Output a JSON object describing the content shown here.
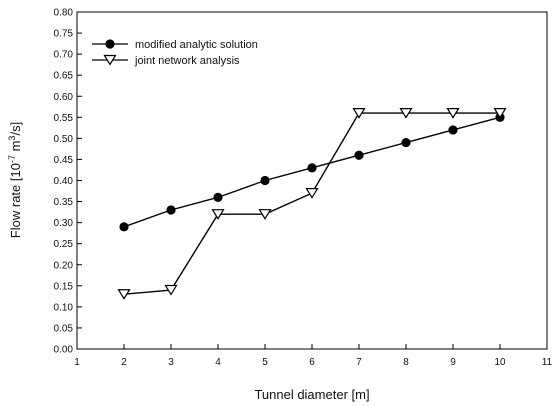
{
  "chart_data": {
    "type": "line",
    "xlabel": "Tunnel diameter [m]",
    "ylabel_parts": [
      "Flow rate [10",
      "-7",
      " m",
      "3",
      "/s]"
    ],
    "xlim": [
      1,
      11
    ],
    "ylim": [
      0,
      0.8
    ],
    "xticks": [
      "1",
      "2",
      "3",
      "4",
      "5",
      "6",
      "7",
      "8",
      "9",
      "10",
      "11"
    ],
    "yticks": [
      "0.00",
      "0.05",
      "0.10",
      "0.15",
      "0.20",
      "0.25",
      "0.30",
      "0.35",
      "0.40",
      "0.45",
      "0.50",
      "0.55",
      "0.60",
      "0.65",
      "0.70",
      "0.75",
      "0.80"
    ],
    "legend_position": "top-left",
    "grid": false,
    "series": [
      {
        "name": "modified analytic solution",
        "marker": "filled-circle",
        "x": [
          2,
          3,
          4,
          5,
          6,
          7,
          8,
          9,
          10
        ],
        "y": [
          0.29,
          0.33,
          0.36,
          0.4,
          0.43,
          0.46,
          0.49,
          0.52,
          0.55
        ]
      },
      {
        "name": "joint network analysis",
        "marker": "open-triangle-down",
        "x": [
          2,
          3,
          4,
          5,
          6,
          7,
          8,
          9,
          10
        ],
        "y": [
          0.13,
          0.14,
          0.32,
          0.32,
          0.37,
          0.56,
          0.56,
          0.56,
          0.56
        ]
      }
    ]
  }
}
